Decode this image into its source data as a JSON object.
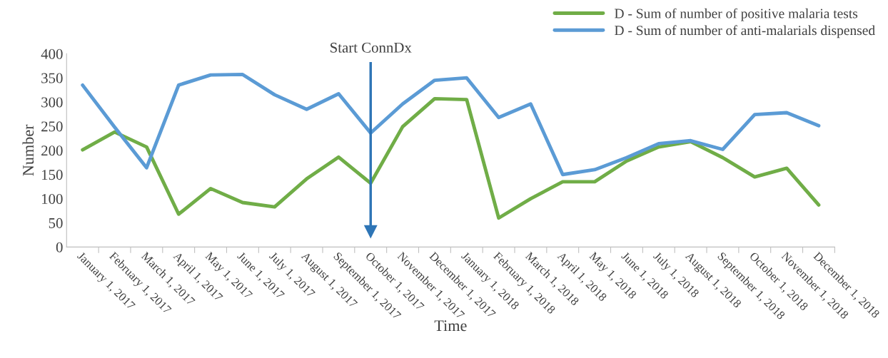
{
  "chart_data": {
    "type": "line",
    "xlabel": "Time",
    "ylabel": "Number",
    "ylim": [
      0,
      400
    ],
    "yticks": [
      0,
      50,
      100,
      150,
      200,
      250,
      300,
      350,
      400
    ],
    "grid": false,
    "legend": "top right",
    "marker": "none",
    "line_style": "solid",
    "categories": [
      "January 1, 2017",
      "February 1, 2017",
      "March 1, 2017",
      "April 1, 2017",
      "May 1, 2017",
      "June 1, 2017",
      "July 1, 2017",
      "August 1, 2017",
      "September 1, 2017",
      "October 1, 2017",
      "November 1, 2017",
      "December 1, 2017",
      "January 1, 2018",
      "February 1, 2018",
      "March 1, 2018",
      "April 1, 2018",
      "May 1, 2018",
      "June 1, 2018",
      "July 1, 2018",
      "August 1, 2018",
      "September 1, 2018",
      "October 1, 2018",
      "November 1, 2018",
      "December 1, 2018"
    ],
    "series": [
      {
        "name": "D - Sum of number of positive malaria tests",
        "color": "#70ad47",
        "values": [
          201,
          238,
          207,
          68,
          121,
          92,
          83,
          141,
          186,
          132,
          249,
          307,
          305,
          60,
          100,
          135,
          135,
          178,
          207,
          218,
          185,
          145,
          163,
          87
        ]
      },
      {
        "name": "D - Sum of number of anti-malarials dispensed",
        "color": "#5b9bd5",
        "values": [
          335,
          248,
          164,
          335,
          356,
          357,
          315,
          285,
          317,
          236,
          296,
          345,
          350,
          268,
          296,
          150,
          160,
          185,
          214,
          220,
          202,
          274,
          278,
          251
        ]
      }
    ],
    "ref_lines": [
      {
        "axis": "x",
        "value": "October 1, 2017",
        "label": "Start ConnDx",
        "color": "#2e75b6"
      }
    ]
  }
}
